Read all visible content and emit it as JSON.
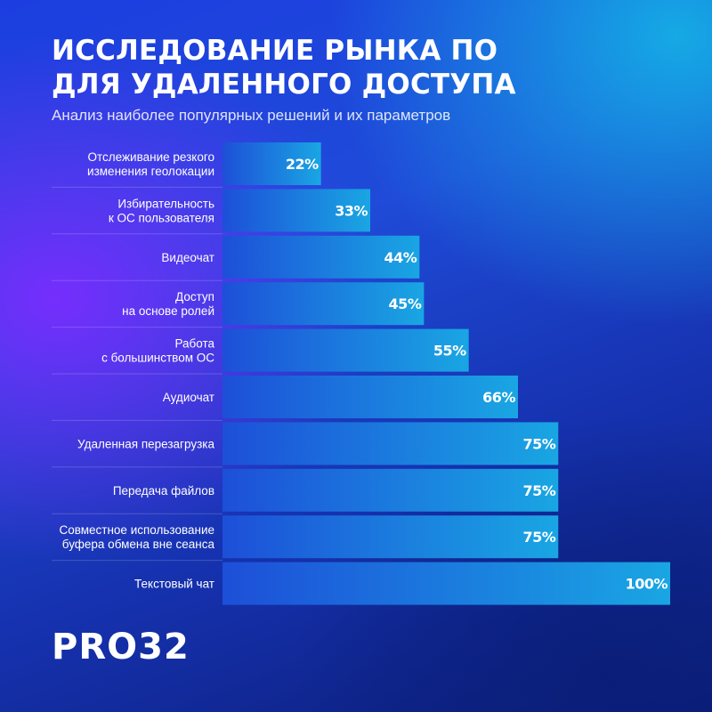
{
  "header": {
    "title_line1": "ИССЛЕДОВАНИЕ РЫНКА ПО",
    "title_line2": "ДЛЯ УДАЛЕННОГО ДОСТУПА",
    "subtitle": "Анализ наиболее популярных решений и их параметров"
  },
  "brand": {
    "logo": "PRO32"
  },
  "colors": {
    "bar_start": "#1d4fd8",
    "bar_end": "#19a6e3",
    "background": "#1c3ee0"
  },
  "chart_data": {
    "type": "bar",
    "orientation": "horizontal",
    "categories": [
      [
        "Отслеживание резкого",
        "изменения геолокации"
      ],
      [
        "Избирательность",
        "к ОС пользователя"
      ],
      [
        "Видеочат"
      ],
      [
        "Доступ",
        "на основе ролей"
      ],
      [
        "Работа",
        "с большинством ОС"
      ],
      [
        "Аудиочат"
      ],
      [
        "Удаленная перезагрузка"
      ],
      [
        "Передача файлов"
      ],
      [
        "Совместное использование",
        "буфера обмена вне сеанса"
      ],
      [
        "Текстовый чат"
      ]
    ],
    "values": [
      22,
      33,
      44,
      45,
      55,
      66,
      75,
      75,
      75,
      100
    ],
    "value_labels": [
      "22%",
      "33%",
      "44%",
      "45%",
      "55%",
      "66%",
      "75%",
      "75%",
      "75%",
      "100%"
    ],
    "xlim": [
      0,
      100
    ],
    "grid": false,
    "legend": "none"
  }
}
